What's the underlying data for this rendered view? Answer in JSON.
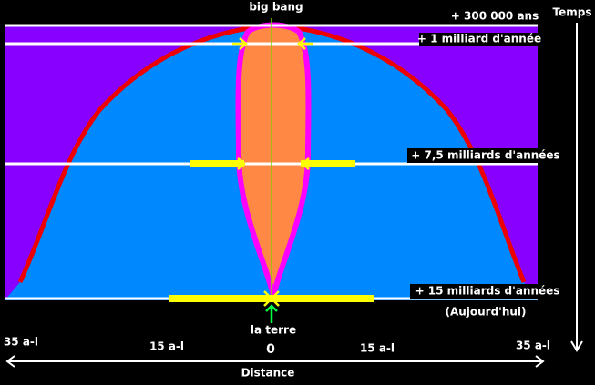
{
  "diagram": {
    "top_label": "big bang",
    "times": [
      "+ 300 000 ans",
      "+ 1 milliard d'année",
      "+ 7,5 milliards d'années",
      "+ 15 milliards d'années"
    ],
    "today": "(Aujourd'hui)",
    "earth": "la terre",
    "time_axis": "Temps",
    "distance_axis": "Distance",
    "distances": [
      "35 a-l",
      "15 a-l",
      "0",
      "15 a-l",
      "35 a-l"
    ]
  }
}
